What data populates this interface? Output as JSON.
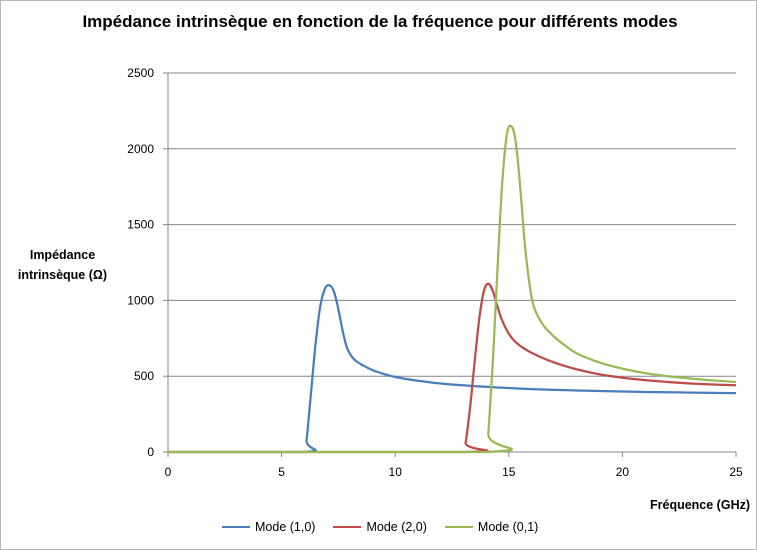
{
  "chart_data": {
    "type": "line",
    "title": "Impédance intrinsèque en fonction de la fréquence pour différents modes",
    "xlabel": "Fréquence  (GHz)",
    "ylabel": "Impédance intrinsèque  (Ω)",
    "xlim": [
      0,
      25
    ],
    "ylim": [
      0,
      2500
    ],
    "xticks": [
      "0",
      "5",
      "10",
      "15",
      "20",
      "25"
    ],
    "yticks": [
      "0",
      "500",
      "1000",
      "1500",
      "2000",
      "2500"
    ],
    "grid": "horizontal",
    "legend_position": "bottom",
    "series": [
      {
        "name": "Mode (1,0)",
        "color": "#4a7ebb",
        "x": [
          0,
          6,
          6.1,
          6.3,
          6.5,
          6.7,
          6.9,
          7.1,
          7.3,
          7.5,
          7.7,
          7.9,
          8.2,
          8.6,
          9.0,
          9.5,
          10,
          11,
          12,
          13,
          14,
          15,
          16,
          17,
          18,
          19,
          20,
          21,
          22,
          23,
          24,
          25
        ],
        "y": [
          0,
          0,
          80,
          400,
          720,
          960,
          1075,
          1100,
          1060,
          940,
          790,
          680,
          610,
          570,
          540,
          515,
          495,
          470,
          452,
          440,
          430,
          422,
          415,
          410,
          406,
          402,
          399,
          396,
          394,
          392,
          390,
          388
        ]
      },
      {
        "name": "Mode (2,0)",
        "color": "#be4b48",
        "x": [
          0,
          13,
          13.1,
          13.3,
          13.5,
          13.7,
          13.9,
          14.1,
          14.3,
          14.5,
          14.7,
          15.0,
          15.3,
          15.7,
          16.2,
          17,
          18,
          19,
          20,
          21,
          22,
          23,
          24,
          25
        ],
        "y": [
          0,
          0,
          60,
          300,
          600,
          880,
          1060,
          1110,
          1060,
          960,
          870,
          780,
          725,
          680,
          640,
          590,
          545,
          512,
          490,
          474,
          462,
          452,
          445,
          440
        ]
      },
      {
        "name": "Mode (0,1)",
        "color": "#98b954",
        "x": [
          0,
          14,
          14.1,
          14.3,
          14.5,
          14.7,
          14.9,
          15.1,
          15.3,
          15.5,
          15.7,
          15.9,
          16.1,
          16.5,
          17,
          17.5,
          18,
          19,
          20,
          21,
          22,
          23,
          24,
          25
        ],
        "y": [
          0,
          0,
          120,
          600,
          1200,
          1750,
          2080,
          2150,
          2050,
          1750,
          1380,
          1120,
          960,
          840,
          760,
          700,
          650,
          590,
          550,
          520,
          500,
          485,
          472,
          462
        ]
      }
    ]
  }
}
